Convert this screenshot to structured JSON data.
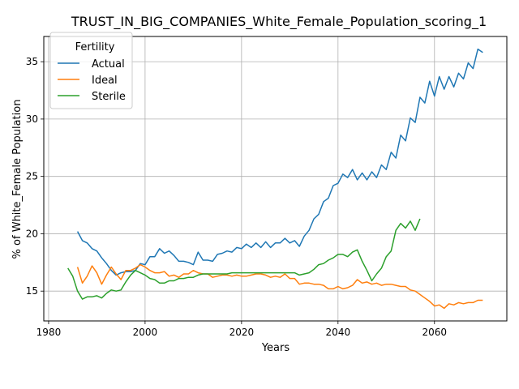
{
  "chart_data": {
    "type": "line",
    "title": "TRUST_IN_BIG_COMPANIES_White_Female_Population_scoring_1",
    "xlabel": "Years",
    "ylabel": "% of White_Female Population",
    "xlim": [
      1979,
      2075
    ],
    "ylim": [
      12.4,
      37.2
    ],
    "xticks": [
      1980,
      2000,
      2020,
      2040,
      2060
    ],
    "yticks": [
      15,
      20,
      25,
      30,
      35
    ],
    "grid": true,
    "legend": {
      "title": "Fertility",
      "placement": "upper left"
    },
    "series": [
      {
        "name": "Actual",
        "color": "#1f77b4",
        "x": [
          1986,
          1987,
          1988,
          1989,
          1990,
          1991,
          1992,
          1993,
          1994,
          1995,
          1996,
          1997,
          1998,
          1999,
          2000,
          2001,
          2002,
          2003,
          2004,
          2005,
          2006,
          2007,
          2008,
          2009,
          2010,
          2011,
          2012,
          2013,
          2014,
          2015,
          2016,
          2017,
          2018,
          2019,
          2020,
          2021,
          2022,
          2023,
          2024,
          2025,
          2026,
          2027,
          2028,
          2029,
          2030,
          2031,
          2032,
          2033,
          2034,
          2035,
          2036,
          2037,
          2038,
          2039,
          2040,
          2041,
          2042,
          2043,
          2044,
          2045,
          2046,
          2047,
          2048,
          2049,
          2050,
          2051,
          2052,
          2053,
          2054,
          2055,
          2056,
          2057,
          2058,
          2059,
          2060,
          2061,
          2062,
          2063,
          2064,
          2065,
          2066,
          2067,
          2068,
          2069,
          2070
        ],
        "values": [
          20.2,
          19.4,
          19.2,
          18.7,
          18.5,
          17.9,
          17.4,
          16.8,
          16.4,
          16.6,
          16.7,
          16.7,
          16.8,
          17.4,
          17.3,
          18.0,
          18.0,
          18.7,
          18.3,
          18.5,
          18.1,
          17.6,
          17.6,
          17.5,
          17.3,
          18.4,
          17.7,
          17.7,
          17.6,
          18.2,
          18.3,
          18.5,
          18.4,
          18.8,
          18.7,
          19.1,
          18.8,
          19.2,
          18.8,
          19.3,
          18.8,
          19.2,
          19.2,
          19.6,
          19.2,
          19.4,
          18.9,
          19.8,
          20.3,
          21.3,
          21.7,
          22.8,
          23.1,
          24.2,
          24.4,
          25.2,
          24.9,
          25.6,
          24.7,
          25.3,
          24.7,
          25.4,
          24.9,
          26.0,
          25.6,
          27.1,
          26.6,
          28.6,
          28.1,
          30.1,
          29.7,
          31.9,
          31.4,
          33.3,
          32.0,
          33.7,
          32.6,
          33.7,
          32.8,
          34.0,
          33.5,
          34.9,
          34.4,
          36.1,
          35.8
        ]
      },
      {
        "name": "Ideal",
        "color": "#ff7f0e",
        "x": [
          1986,
          1987,
          1988,
          1989,
          1990,
          1991,
          1992,
          1993,
          1994,
          1995,
          1996,
          1997,
          1998,
          1999,
          2000,
          2001,
          2002,
          2003,
          2004,
          2005,
          2006,
          2007,
          2008,
          2009,
          2010,
          2011,
          2012,
          2013,
          2014,
          2015,
          2016,
          2017,
          2018,
          2019,
          2020,
          2021,
          2022,
          2023,
          2024,
          2025,
          2026,
          2027,
          2028,
          2029,
          2030,
          2031,
          2032,
          2033,
          2034,
          2035,
          2036,
          2037,
          2038,
          2039,
          2040,
          2041,
          2042,
          2043,
          2044,
          2045,
          2046,
          2047,
          2048,
          2049,
          2050,
          2051,
          2052,
          2053,
          2054,
          2055,
          2056,
          2057,
          2058,
          2059,
          2060,
          2061,
          2062,
          2063,
          2064,
          2065,
          2066,
          2067,
          2068,
          2069,
          2070
        ],
        "values": [
          17.1,
          15.7,
          16.3,
          17.2,
          16.6,
          15.6,
          16.4,
          17.1,
          16.5,
          16.0,
          16.8,
          16.8,
          17.0,
          17.3,
          17.1,
          16.8,
          16.6,
          16.6,
          16.7,
          16.3,
          16.4,
          16.2,
          16.5,
          16.5,
          16.8,
          16.6,
          16.5,
          16.5,
          16.2,
          16.3,
          16.4,
          16.4,
          16.3,
          16.4,
          16.3,
          16.3,
          16.4,
          16.5,
          16.5,
          16.4,
          16.2,
          16.3,
          16.2,
          16.5,
          16.1,
          16.1,
          15.6,
          15.7,
          15.7,
          15.6,
          15.6,
          15.5,
          15.2,
          15.2,
          15.4,
          15.2,
          15.3,
          15.5,
          16.0,
          15.7,
          15.8,
          15.6,
          15.7,
          15.5,
          15.6,
          15.6,
          15.5,
          15.4,
          15.4,
          15.1,
          15.0,
          14.7,
          14.4,
          14.1,
          13.7,
          13.8,
          13.5,
          13.9,
          13.8,
          14.0,
          13.9,
          14.0,
          14.0,
          14.2,
          14.2
        ]
      },
      {
        "name": "Sterile",
        "color": "#2ca02c",
        "x": [
          1984,
          1985,
          1986,
          1987,
          1988,
          1989,
          1990,
          1991,
          1992,
          1993,
          1994,
          1995,
          1996,
          1997,
          1998,
          1999,
          2000,
          2001,
          2002,
          2003,
          2004,
          2005,
          2006,
          2007,
          2008,
          2009,
          2010,
          2011,
          2012,
          2013,
          2014,
          2015,
          2016,
          2017,
          2018,
          2019,
          2020,
          2021,
          2022,
          2023,
          2024,
          2025,
          2026,
          2027,
          2028,
          2029,
          2030,
          2031,
          2032,
          2033,
          2034,
          2035,
          2036,
          2037,
          2038,
          2039,
          2040,
          2041,
          2042,
          2043,
          2044,
          2045,
          2046,
          2047,
          2048,
          2049,
          2050,
          2051,
          2052,
          2053,
          2054,
          2055,
          2056,
          2057
        ],
        "values": [
          17.0,
          16.3,
          15.0,
          14.3,
          14.5,
          14.5,
          14.6,
          14.4,
          14.8,
          15.1,
          15.0,
          15.1,
          15.8,
          16.4,
          16.8,
          16.6,
          16.4,
          16.1,
          16.0,
          15.7,
          15.7,
          15.9,
          15.9,
          16.1,
          16.1,
          16.2,
          16.2,
          16.4,
          16.5,
          16.5,
          16.5,
          16.5,
          16.5,
          16.5,
          16.6,
          16.6,
          16.6,
          16.6,
          16.6,
          16.6,
          16.6,
          16.6,
          16.6,
          16.6,
          16.6,
          16.6,
          16.6,
          16.6,
          16.4,
          16.5,
          16.6,
          16.9,
          17.3,
          17.4,
          17.7,
          17.9,
          18.2,
          18.2,
          18.0,
          18.4,
          18.6,
          17.6,
          16.8,
          15.9,
          16.5,
          17.0,
          18.0,
          18.5,
          20.3,
          20.9,
          20.5,
          21.1,
          20.3,
          21.3
        ]
      }
    ]
  }
}
